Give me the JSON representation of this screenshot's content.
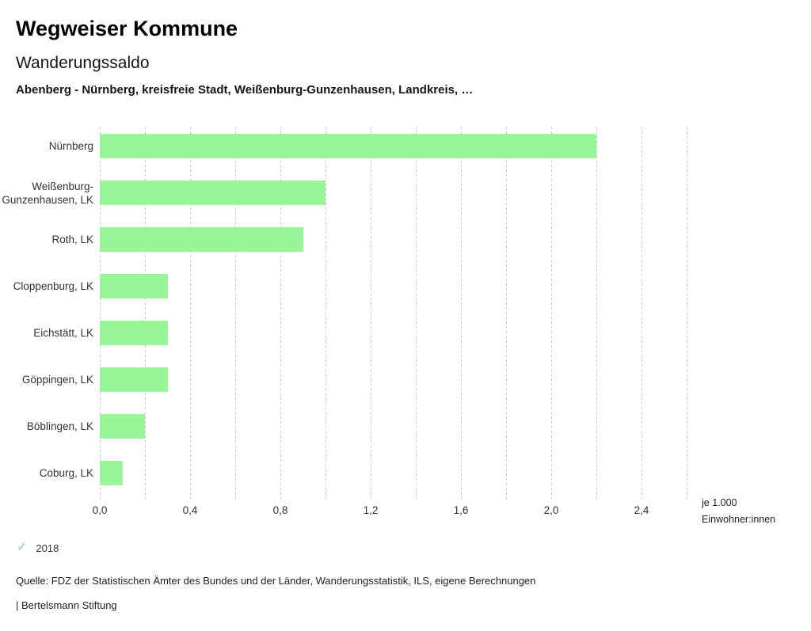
{
  "header": {
    "app_title": "Wegweiser Kommune",
    "chart_title": "Wanderungssaldo",
    "subtitle": "Abenberg - Nürnberg, kreisfreie Stadt, Weißenburg-Gunzenhausen, Landkreis, …"
  },
  "chart_data": {
    "type": "bar",
    "orientation": "horizontal",
    "title": "Wanderungssaldo",
    "categories": [
      "Nürnberg",
      "Weißenburg-Gunzenhausen, LK",
      "Roth, LK",
      "Cloppenburg, LK",
      "Eichstätt, LK",
      "Göppingen, LK",
      "Böblingen, LK",
      "Coburg, LK"
    ],
    "values": [
      2.2,
      1.0,
      0.9,
      0.3,
      0.3,
      0.3,
      0.2,
      0.1
    ],
    "unit": "je 1.000 Einwohner:innen",
    "unit_label_lines": [
      "je 1.000",
      "Einwohner:innen"
    ],
    "xlim": [
      0,
      2.6
    ],
    "grid_step": 0.2,
    "grid": true,
    "x_ticks": [
      {
        "label": "0,0",
        "value": 0.0
      },
      {
        "label": "0,4",
        "value": 0.4
      },
      {
        "label": "0,8",
        "value": 0.8
      },
      {
        "label": "1,2",
        "value": 1.2
      },
      {
        "label": "1,6",
        "value": 1.6
      },
      {
        "label": "2,0",
        "value": 2.0
      },
      {
        "label": "2,4",
        "value": 2.4
      }
    ],
    "bar_color": "#98f598",
    "legend": {
      "position": "bottom-left",
      "items": [
        {
          "label": "2018",
          "icon": "check",
          "color": "#8ddc8d"
        }
      ]
    }
  },
  "footer": {
    "source": "Quelle: FDZ der Statistischen Ämter des Bundes und der Länder, Wanderungsstatistik, ILS, eigene Berechnungen",
    "attribution": "| Bertelsmann Stiftung"
  }
}
